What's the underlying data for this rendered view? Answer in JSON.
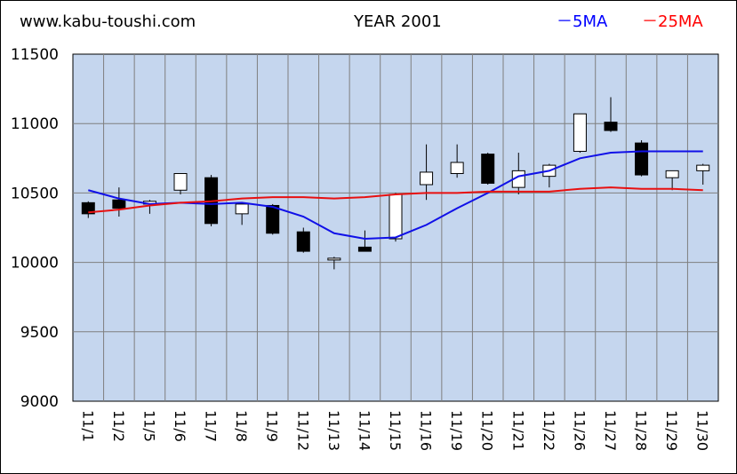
{
  "header": {
    "site": "www.kabu-toushi.com",
    "title": "YEAR 2001",
    "legend_5ma": "－5MA",
    "legend_25ma": "－25MA"
  },
  "colors": {
    "plot_bg": "#c5d6ee",
    "ma5": "#1010e8",
    "ma25": "#e81010",
    "up_body": "#ffffff",
    "down_body": "#000000"
  },
  "chart_data": {
    "type": "candlestick",
    "title": "YEAR 2001",
    "xlabel": "",
    "ylabel": "",
    "ylim": [
      9000,
      11500
    ],
    "yticks": [
      9000,
      9500,
      10000,
      10500,
      11000,
      11500
    ],
    "categories": [
      "11/1",
      "11/2",
      "11/5",
      "11/6",
      "11/7",
      "11/8",
      "11/9",
      "11/12",
      "11/13",
      "11/14",
      "11/15",
      "11/16",
      "11/19",
      "11/20",
      "11/21",
      "11/22",
      "11/26",
      "11/27",
      "11/28",
      "11/29",
      "11/30"
    ],
    "ohlc": [
      {
        "open": 10430,
        "high": 10440,
        "low": 10320,
        "close": 10350
      },
      {
        "open": 10450,
        "high": 10540,
        "low": 10330,
        "close": 10390
      },
      {
        "open": 10420,
        "high": 10450,
        "low": 10350,
        "close": 10440
      },
      {
        "open": 10520,
        "high": 10640,
        "low": 10490,
        "close": 10640
      },
      {
        "open": 10610,
        "high": 10630,
        "low": 10260,
        "close": 10280
      },
      {
        "open": 10350,
        "high": 10430,
        "low": 10270,
        "close": 10420
      },
      {
        "open": 10410,
        "high": 10420,
        "low": 10200,
        "close": 10210
      },
      {
        "open": 10220,
        "high": 10250,
        "low": 10070,
        "close": 10080
      },
      {
        "open": 10020,
        "high": 10040,
        "low": 9950,
        "close": 10030
      },
      {
        "open": 10110,
        "high": 10230,
        "low": 10080,
        "close": 10080
      },
      {
        "open": 10170,
        "high": 10500,
        "low": 10150,
        "close": 10490
      },
      {
        "open": 10560,
        "high": 10850,
        "low": 10450,
        "close": 10650
      },
      {
        "open": 10640,
        "high": 10850,
        "low": 10610,
        "close": 10720
      },
      {
        "open": 10780,
        "high": 10790,
        "low": 10560,
        "close": 10570
      },
      {
        "open": 10540,
        "high": 10790,
        "low": 10490,
        "close": 10660
      },
      {
        "open": 10620,
        "high": 10710,
        "low": 10540,
        "close": 10700
      },
      {
        "open": 10800,
        "high": 11070,
        "low": 10790,
        "close": 11070
      },
      {
        "open": 11010,
        "high": 11190,
        "low": 10940,
        "close": 10950
      },
      {
        "open": 10860,
        "high": 10880,
        "low": 10620,
        "close": 10630
      },
      {
        "open": 10610,
        "high": 10660,
        "low": 10520,
        "close": 10660
      },
      {
        "open": 10660,
        "high": 10710,
        "low": 10560,
        "close": 10700
      }
    ],
    "series": [
      {
        "name": "5MA",
        "values": [
          10520,
          10460,
          10420,
          10430,
          10420,
          10430,
          10400,
          10330,
          10210,
          10170,
          10180,
          10270,
          10390,
          10500,
          10620,
          10660,
          10750,
          10790,
          10800,
          10800,
          10800
        ]
      },
      {
        "name": "25MA",
        "values": [
          10360,
          10380,
          10410,
          10430,
          10440,
          10460,
          10470,
          10470,
          10460,
          10470,
          10490,
          10500,
          10500,
          10510,
          10510,
          10510,
          10530,
          10540,
          10530,
          10530,
          10520
        ]
      }
    ]
  }
}
